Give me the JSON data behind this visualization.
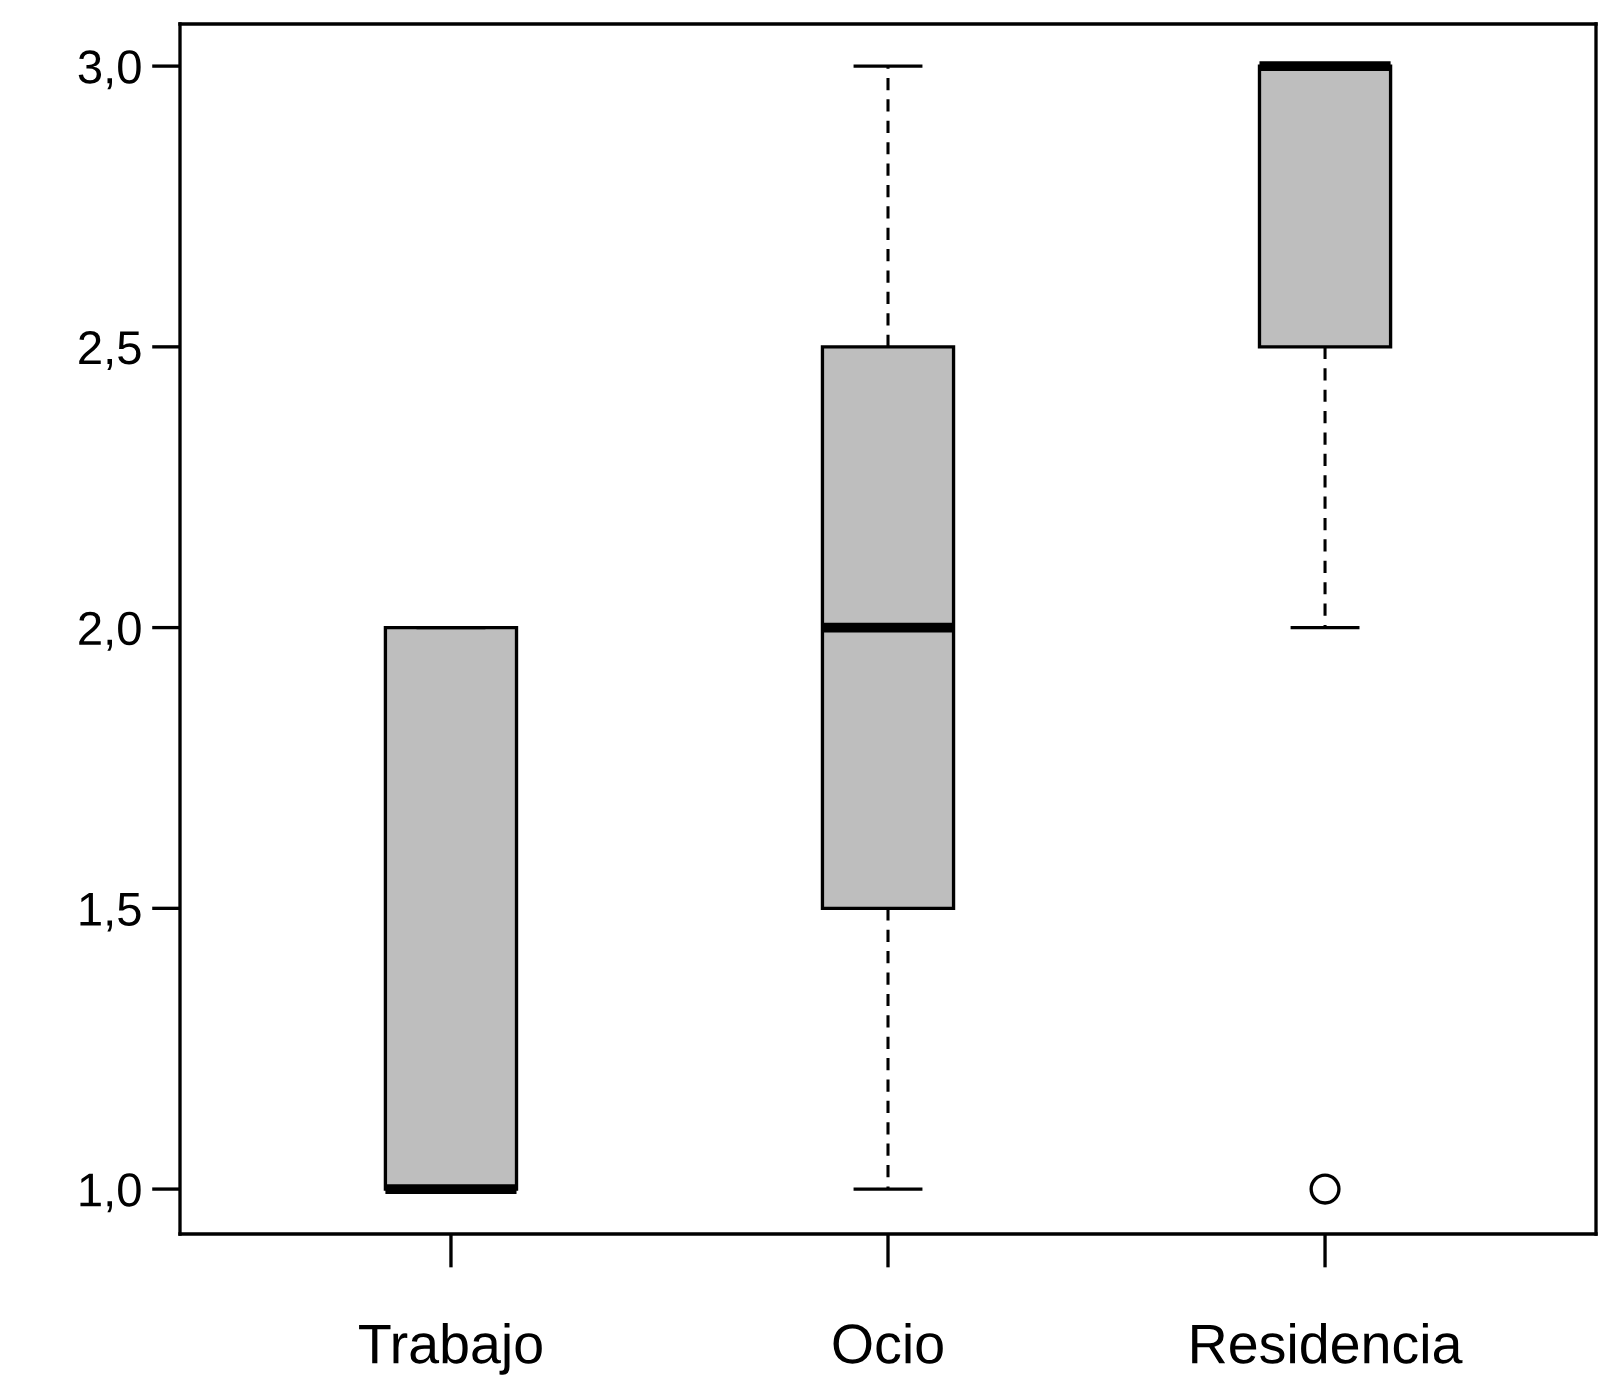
{
  "chart_data": {
    "type": "box",
    "categories": [
      "Trabajo",
      "Ocio",
      "Residencia"
    ],
    "color": "#bebebe",
    "boxes": [
      {
        "low": 1,
        "q1": 1,
        "median": 1,
        "q3": 2,
        "high": 2
      },
      {
        "low": 1,
        "q1": 1.5,
        "median": 2,
        "q3": 2.5,
        "high": 3
      },
      {
        "low": 2,
        "q1": 2.5,
        "median": 3,
        "q3": 3,
        "high": 3,
        "outliers": [
          1
        ]
      }
    ],
    "ylim": [
      0.92,
      3.075
    ],
    "yticks": [
      {
        "value": 1,
        "label": "1,0"
      },
      {
        "value": 1.5,
        "label": "1,5"
      },
      {
        "value": 2,
        "label": "2,0"
      },
      {
        "value": 2.5,
        "label": "2,5"
      },
      {
        "value": 3,
        "label": "3,0"
      }
    ],
    "grid": false,
    "legend": false
  }
}
